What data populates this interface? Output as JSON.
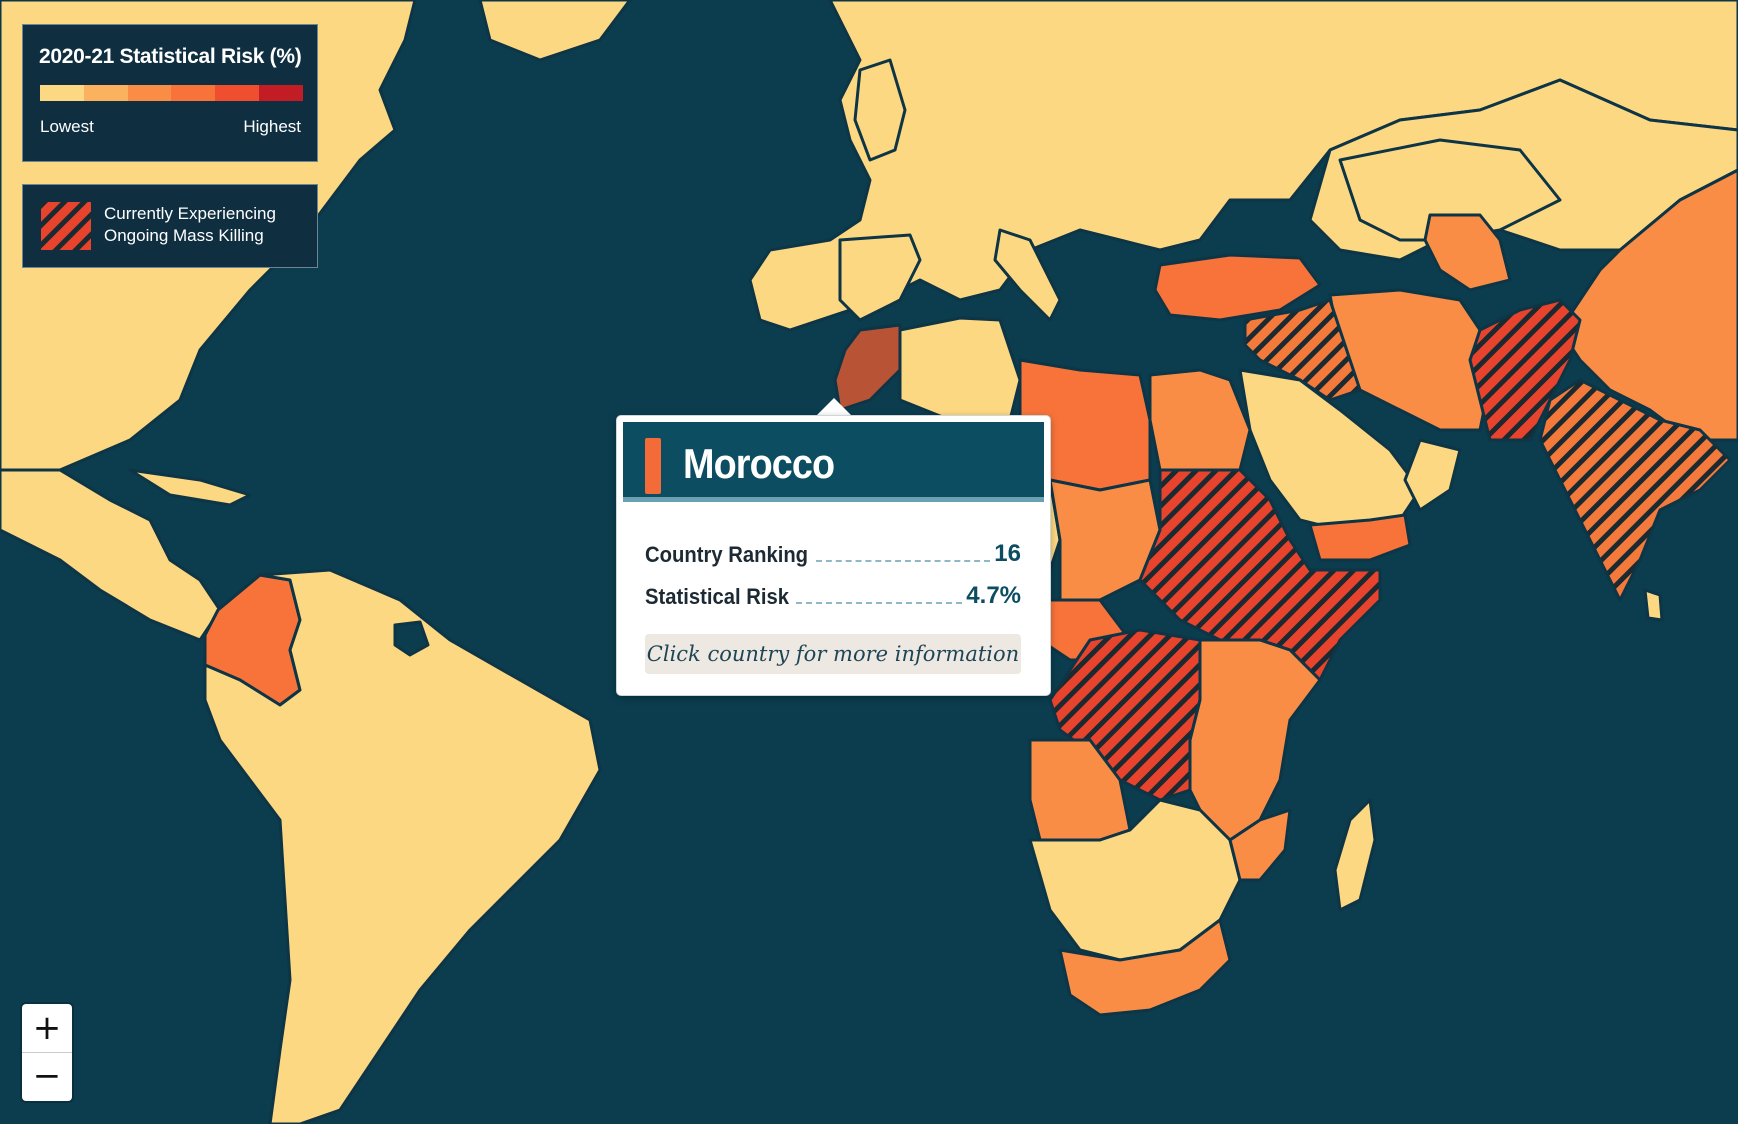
{
  "legend": {
    "title": "2020-21 Statistical Risk (%)",
    "low_label": "Lowest",
    "high_label": "Highest",
    "scale_colors": [
      "#fdd882",
      "#fbb25f",
      "#f98d46",
      "#f77339",
      "#ef4f2f",
      "#c21d24"
    ],
    "mass_killing_label_line1": "Currently Experiencing",
    "mass_killing_label_line2": "Ongoing Mass Killing"
  },
  "tooltip": {
    "country": "Morocco",
    "ranking_label": "Country Ranking",
    "ranking_value": "16",
    "risk_label": "Statistical Risk",
    "risk_value": "4.7%",
    "cta": "Click country for more information"
  },
  "zoom": {
    "in_label": "+",
    "out_label": "−"
  },
  "colors": {
    "ocean": "#0b3d4e",
    "border": "#0d3546",
    "low_risk": "#fdd882",
    "mid_risk": "#f98d46",
    "high_risk": "#f76f3a",
    "hatch_red": "#e8432c",
    "selected": "#b85435"
  },
  "icons": {
    "mass_killing_swatch": "hatched-swatch-icon",
    "zoom_in": "plus-icon",
    "zoom_out": "minus-icon"
  }
}
